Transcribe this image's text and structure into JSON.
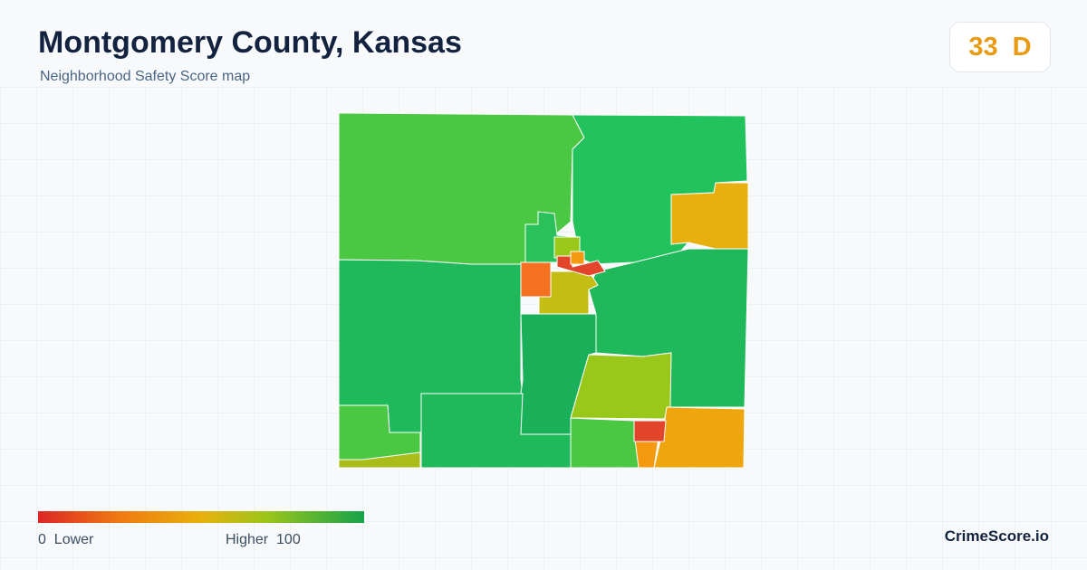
{
  "header": {
    "title": "Montgomery County, Kansas",
    "subtitle": "Neighborhood Safety Score map"
  },
  "badge": {
    "score": 33,
    "grade": "D"
  },
  "legend": {
    "min": 0,
    "min_label": "Lower",
    "max_label": "Higher",
    "max": 100
  },
  "footer": {
    "brand": "CrimeScore.io"
  }
}
